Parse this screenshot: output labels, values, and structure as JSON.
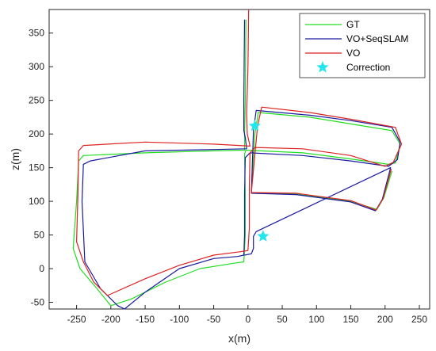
{
  "chart_data": {
    "type": "line",
    "xlabel": "x(m)",
    "ylabel": "z(m)",
    "xlim": [
      -290,
      265
    ],
    "ylim": [
      -60,
      385
    ],
    "x_ticks": [
      -250,
      -200,
      -150,
      -100,
      -50,
      0,
      50,
      100,
      150,
      200,
      250
    ],
    "y_ticks": [
      -50,
      0,
      50,
      100,
      150,
      200,
      250,
      300,
      350
    ],
    "grid": false,
    "legend_position": "top-right",
    "series": [
      {
        "name": "GT",
        "color": "#22dd22",
        "points": [
          [
            -3,
            370
          ],
          [
            -4,
            250
          ],
          [
            -5,
            200
          ],
          [
            -5,
            176
          ],
          [
            -50,
            175
          ],
          [
            -150,
            172
          ],
          [
            -240,
            168
          ],
          [
            -247,
            160
          ],
          [
            -250,
            100
          ],
          [
            -255,
            30
          ],
          [
            -245,
            0
          ],
          [
            -220,
            -30
          ],
          [
            -200,
            -55
          ],
          [
            -170,
            -45
          ],
          [
            -120,
            -20
          ],
          [
            -70,
            0
          ],
          [
            -20,
            8
          ],
          [
            -6,
            10
          ],
          [
            -4,
            50
          ],
          [
            -4,
            110
          ],
          [
            -5,
            170
          ],
          [
            -3,
            176
          ],
          [
            80,
            172
          ],
          [
            150,
            163
          ],
          [
            205,
            155
          ],
          [
            215,
            157
          ],
          [
            222,
            185
          ],
          [
            210,
            205
          ],
          [
            150,
            215
          ],
          [
            90,
            225
          ],
          [
            15,
            232
          ],
          [
            10,
            200
          ],
          [
            5,
            112
          ],
          [
            70,
            111
          ],
          [
            150,
            100
          ],
          [
            188,
            88
          ],
          [
            198,
            105
          ],
          [
            210,
            145
          ]
        ]
      },
      {
        "name": "VO+SeqSLAM",
        "color": "#1a1aa0",
        "points": [
          [
            -5,
            370
          ],
          [
            -6,
            250
          ],
          [
            -6,
            205
          ],
          [
            -4,
            195
          ],
          [
            -2,
            178
          ],
          [
            -50,
            177
          ],
          [
            -150,
            175
          ],
          [
            -230,
            160
          ],
          [
            -240,
            155
          ],
          [
            -242,
            100
          ],
          [
            -238,
            10
          ],
          [
            -215,
            -30
          ],
          [
            -190,
            -55
          ],
          [
            -180,
            -60
          ],
          [
            -150,
            -35
          ],
          [
            -100,
            0
          ],
          [
            -50,
            15
          ],
          [
            -15,
            18
          ],
          [
            -6,
            20
          ],
          [
            -5,
            50
          ],
          [
            -5,
            110
          ],
          [
            -4,
            165
          ],
          [
            3,
            172
          ],
          [
            80,
            168
          ],
          [
            150,
            160
          ],
          [
            205,
            152
          ],
          [
            218,
            162
          ],
          [
            222,
            188
          ],
          [
            210,
            210
          ],
          [
            150,
            220
          ],
          [
            90,
            228
          ],
          [
            12,
            235
          ],
          [
            8,
            205
          ],
          [
            5,
            112
          ],
          [
            70,
            110
          ],
          [
            150,
            99
          ],
          [
            186,
            86
          ],
          [
            196,
            103
          ],
          [
            208,
            150
          ],
          [
            12,
            55
          ],
          [
            8,
            48
          ],
          [
            8,
            30
          ],
          [
            5,
            22
          ],
          [
            -5,
            20
          ]
        ]
      },
      {
        "name": "VO",
        "color": "#dd2222",
        "points": [
          [
            1,
            385
          ],
          [
            0,
            300
          ],
          [
            -2,
            230
          ],
          [
            -1,
            200
          ],
          [
            3,
            182
          ],
          [
            -50,
            185
          ],
          [
            -150,
            188
          ],
          [
            -240,
            183
          ],
          [
            -247,
            175
          ],
          [
            -248,
            110
          ],
          [
            -250,
            40
          ],
          [
            -240,
            10
          ],
          [
            -225,
            -20
          ],
          [
            -205,
            -40
          ],
          [
            -150,
            -15
          ],
          [
            -100,
            5
          ],
          [
            -50,
            20
          ],
          [
            -12,
            25
          ],
          [
            0,
            27
          ],
          [
            2,
            60
          ],
          [
            2,
            120
          ],
          [
            3,
            172
          ],
          [
            10,
            180
          ],
          [
            80,
            178
          ],
          [
            150,
            168
          ],
          [
            200,
            152
          ],
          [
            212,
            158
          ],
          [
            224,
            185
          ],
          [
            215,
            210
          ],
          [
            150,
            222
          ],
          [
            90,
            232
          ],
          [
            20,
            240
          ],
          [
            14,
            212
          ],
          [
            5,
            113
          ],
          [
            70,
            112
          ],
          [
            150,
            101
          ],
          [
            187,
            87
          ],
          [
            197,
            104
          ],
          [
            209,
            148
          ]
        ]
      },
      {
        "name": "Correction",
        "color": "#22e5ee",
        "marker": "star",
        "points": [
          [
            10,
            212
          ],
          [
            22,
            48
          ]
        ]
      }
    ]
  }
}
